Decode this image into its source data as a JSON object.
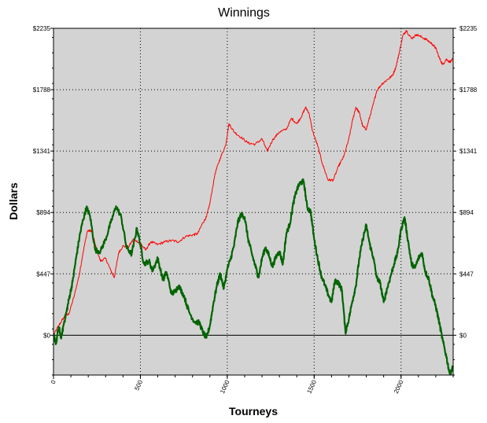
{
  "chart_data": {
    "type": "line",
    "title": "Winnings",
    "xlabel": "Tourneys",
    "ylabel": "Dollars",
    "xlim": [
      0,
      2300
    ],
    "ylim": [
      -290,
      2235
    ],
    "x_ticks": [
      0,
      500,
      1000,
      1500,
      2000
    ],
    "x_tick_labels": [
      "0",
      "500",
      "1000",
      "1500",
      "2000"
    ],
    "y_ticks": [
      0,
      447,
      894,
      1341,
      1788,
      2235
    ],
    "y_tick_labels": [
      "$0",
      "$447",
      "$894",
      "$1341",
      "$1788",
      "$2235"
    ],
    "grid": true,
    "grid_style": "dotted",
    "zero_line": true,
    "legend": "none",
    "colors": {
      "plot_bg": "#d3d3d3",
      "series_red": "#ff0000",
      "series_green": "#006400",
      "grid": "#000000"
    },
    "series": [
      {
        "color": "#ff0000",
        "points": [
          [
            0,
            0
          ],
          [
            30,
            70
          ],
          [
            60,
            130
          ],
          [
            90,
            160
          ],
          [
            120,
            290
          ],
          [
            150,
            450
          ],
          [
            170,
            600
          ],
          [
            195,
            760
          ],
          [
            220,
            760
          ],
          [
            245,
            640
          ],
          [
            270,
            540
          ],
          [
            300,
            560
          ],
          [
            330,
            470
          ],
          [
            350,
            420
          ],
          [
            375,
            600
          ],
          [
            400,
            650
          ],
          [
            430,
            640
          ],
          [
            460,
            700
          ],
          [
            500,
            670
          ],
          [
            530,
            620
          ],
          [
            560,
            680
          ],
          [
            600,
            660
          ],
          [
            640,
            680
          ],
          [
            680,
            690
          ],
          [
            720,
            680
          ],
          [
            760,
            720
          ],
          [
            800,
            730
          ],
          [
            830,
            740
          ],
          [
            860,
            820
          ],
          [
            880,
            860
          ],
          [
            900,
            960
          ],
          [
            930,
            1180
          ],
          [
            960,
            1290
          ],
          [
            990,
            1380
          ],
          [
            1010,
            1540
          ],
          [
            1040,
            1480
          ],
          [
            1080,
            1440
          ],
          [
            1120,
            1400
          ],
          [
            1160,
            1390
          ],
          [
            1200,
            1430
          ],
          [
            1230,
            1340
          ],
          [
            1260,
            1420
          ],
          [
            1300,
            1480
          ],
          [
            1340,
            1500
          ],
          [
            1370,
            1580
          ],
          [
            1400,
            1540
          ],
          [
            1430,
            1600
          ],
          [
            1450,
            1660
          ],
          [
            1470,
            1620
          ],
          [
            1490,
            1490
          ],
          [
            1520,
            1380
          ],
          [
            1550,
            1240
          ],
          [
            1580,
            1130
          ],
          [
            1610,
            1130
          ],
          [
            1640,
            1230
          ],
          [
            1670,
            1300
          ],
          [
            1700,
            1430
          ],
          [
            1720,
            1560
          ],
          [
            1740,
            1660
          ],
          [
            1760,
            1620
          ],
          [
            1780,
            1520
          ],
          [
            1800,
            1500
          ],
          [
            1820,
            1590
          ],
          [
            1840,
            1680
          ],
          [
            1860,
            1780
          ],
          [
            1890,
            1830
          ],
          [
            1920,
            1860
          ],
          [
            1950,
            1890
          ],
          [
            1970,
            1950
          ],
          [
            1990,
            2060
          ],
          [
            2010,
            2180
          ],
          [
            2030,
            2220
          ],
          [
            2060,
            2160
          ],
          [
            2090,
            2190
          ],
          [
            2120,
            2170
          ],
          [
            2150,
            2150
          ],
          [
            2180,
            2120
          ],
          [
            2200,
            2090
          ],
          [
            2220,
            2020
          ],
          [
            2240,
            1970
          ],
          [
            2260,
            2010
          ],
          [
            2280,
            1990
          ],
          [
            2300,
            2010
          ]
        ]
      },
      {
        "color": "#006400",
        "points": [
          [
            0,
            0
          ],
          [
            15,
            -60
          ],
          [
            30,
            60
          ],
          [
            45,
            -20
          ],
          [
            60,
            90
          ],
          [
            75,
            170
          ],
          [
            90,
            270
          ],
          [
            110,
            390
          ],
          [
            130,
            560
          ],
          [
            150,
            720
          ],
          [
            170,
            840
          ],
          [
            190,
            930
          ],
          [
            210,
            870
          ],
          [
            240,
            620
          ],
          [
            270,
            610
          ],
          [
            300,
            700
          ],
          [
            330,
            820
          ],
          [
            360,
            940
          ],
          [
            390,
            860
          ],
          [
            420,
            640
          ],
          [
            450,
            590
          ],
          [
            480,
            780
          ],
          [
            500,
            660
          ],
          [
            520,
            520
          ],
          [
            550,
            540
          ],
          [
            570,
            470
          ],
          [
            600,
            560
          ],
          [
            630,
            400
          ],
          [
            650,
            460
          ],
          [
            680,
            300
          ],
          [
            700,
            320
          ],
          [
            720,
            360
          ],
          [
            750,
            290
          ],
          [
            780,
            170
          ],
          [
            810,
            100
          ],
          [
            840,
            90
          ],
          [
            860,
            20
          ],
          [
            880,
            -20
          ],
          [
            900,
            70
          ],
          [
            920,
            230
          ],
          [
            940,
            360
          ],
          [
            960,
            450
          ],
          [
            980,
            340
          ],
          [
            1000,
            480
          ],
          [
            1020,
            560
          ],
          [
            1040,
            660
          ],
          [
            1060,
            820
          ],
          [
            1080,
            880
          ],
          [
            1100,
            860
          ],
          [
            1120,
            700
          ],
          [
            1140,
            600
          ],
          [
            1160,
            510
          ],
          [
            1180,
            420
          ],
          [
            1200,
            560
          ],
          [
            1220,
            640
          ],
          [
            1240,
            580
          ],
          [
            1260,
            500
          ],
          [
            1280,
            570
          ],
          [
            1300,
            610
          ],
          [
            1320,
            520
          ],
          [
            1340,
            740
          ],
          [
            1360,
            810
          ],
          [
            1380,
            960
          ],
          [
            1400,
            1060
          ],
          [
            1420,
            1110
          ],
          [
            1440,
            1120
          ],
          [
            1460,
            930
          ],
          [
            1480,
            900
          ],
          [
            1500,
            700
          ],
          [
            1520,
            560
          ],
          [
            1540,
            440
          ],
          [
            1560,
            370
          ],
          [
            1580,
            300
          ],
          [
            1600,
            240
          ],
          [
            1620,
            400
          ],
          [
            1640,
            380
          ],
          [
            1660,
            330
          ],
          [
            1680,
            20
          ],
          [
            1700,
            120
          ],
          [
            1720,
            250
          ],
          [
            1740,
            360
          ],
          [
            1760,
            560
          ],
          [
            1780,
            700
          ],
          [
            1800,
            800
          ],
          [
            1820,
            660
          ],
          [
            1840,
            570
          ],
          [
            1860,
            420
          ],
          [
            1880,
            380
          ],
          [
            1900,
            240
          ],
          [
            1920,
            340
          ],
          [
            1940,
            430
          ],
          [
            1960,
            520
          ],
          [
            1980,
            600
          ],
          [
            2000,
            770
          ],
          [
            2020,
            860
          ],
          [
            2040,
            690
          ],
          [
            2060,
            520
          ],
          [
            2080,
            490
          ],
          [
            2100,
            560
          ],
          [
            2120,
            600
          ],
          [
            2140,
            460
          ],
          [
            2160,
            410
          ],
          [
            2180,
            290
          ],
          [
            2200,
            210
          ],
          [
            2220,
            90
          ],
          [
            2240,
            -40
          ],
          [
            2260,
            -150
          ],
          [
            2280,
            -280
          ],
          [
            2300,
            -230
          ]
        ]
      }
    ]
  }
}
